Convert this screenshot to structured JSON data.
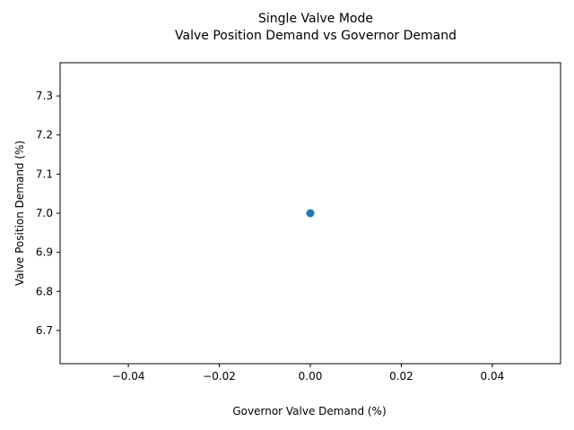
{
  "chart_data": {
    "type": "scatter",
    "title": "Single Valve Mode",
    "subtitle": "Valve Position Demand vs Governor Demand",
    "xlabel": "Governor Valve Demand (%)",
    "ylabel": "Valve Position Demand (%)",
    "xlim": [
      -0.055,
      0.055
    ],
    "ylim": [
      6.615,
      7.385
    ],
    "x_ticks": [
      -0.04,
      -0.02,
      0.0,
      0.02,
      0.04
    ],
    "x_tick_labels": [
      "−0.04",
      "−0.02",
      "0.00",
      "0.02",
      "0.04"
    ],
    "y_ticks": [
      6.7,
      6.8,
      6.9,
      7.0,
      7.1,
      7.2,
      7.3
    ],
    "y_tick_labels": [
      "6.7",
      "6.8",
      "6.9",
      "7.0",
      "7.1",
      "7.2",
      "7.3"
    ],
    "grid": false,
    "series": [
      {
        "x": [
          0.0
        ],
        "y": [
          7.0
        ],
        "color": "#1f77b4",
        "marker": "circle"
      }
    ]
  }
}
